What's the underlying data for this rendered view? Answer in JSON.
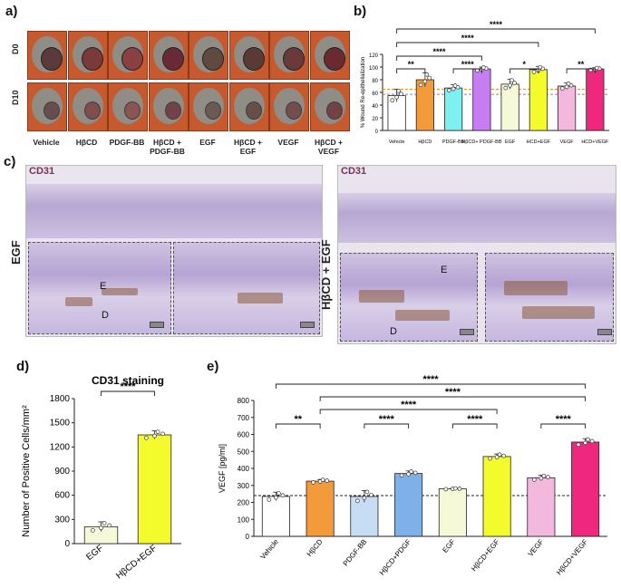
{
  "panels": {
    "a": "a)",
    "b": "b)",
    "c": "c)",
    "d": "d)",
    "e": "e)"
  },
  "panel_a": {
    "row_labels": [
      "D0",
      "D10"
    ],
    "column_labels": [
      "Vehicle",
      "HβCD",
      "PDGF-BB",
      "HβCD + PDGF-BB",
      "EGF",
      "HβCD + EGF",
      "VEGF",
      "HβCD + VEGF"
    ]
  },
  "panel_c": {
    "stain_label_left": "CD31",
    "stain_label_right": "CD31",
    "side_label_left": "EGF",
    "side_label_right": "HβCD + EGF",
    "epidermis": "E",
    "dermis": "D"
  },
  "colors": {
    "vehicle": "#ffffff",
    "hbcd": "#f39a3a",
    "pdgf": "#7ff0f0",
    "hbcd_pdgf": "#c77df2",
    "egf": "#f6f9d8",
    "hbcd_egf": "#f4fb2c",
    "vegf": "#f2b8dd",
    "hbcd_vegf": "#f0287d",
    "pdgf_e": "#c6ddf4",
    "hbcd_pdgf_e": "#7fb0e8"
  },
  "chart_data": [
    {
      "id": "b",
      "type": "bar",
      "ylabel": "% Wound Re-epithelialization",
      "ylim": [
        0,
        120
      ],
      "yticks": [
        0,
        20,
        40,
        60,
        80,
        100,
        120
      ],
      "categories": [
        "Vehicle",
        "HβCD",
        "PDGF-BB",
        "HβCD+ PDGF-BB",
        "EGF",
        "HCD+EGF",
        "VEGF",
        "HCD+VEGF"
      ],
      "values": [
        55,
        80,
        67,
        97,
        73,
        96,
        70,
        97
      ],
      "errors": [
        10,
        11,
        5,
        3,
        8,
        5,
        5,
        2
      ],
      "reference_lines": [
        65,
        57
      ],
      "significance": [
        {
          "from": 0,
          "to": 1,
          "label": "**"
        },
        {
          "from": 2,
          "to": 3,
          "label": "****"
        },
        {
          "from": 4,
          "to": 5,
          "label": "*"
        },
        {
          "from": 6,
          "to": 7,
          "label": "**"
        },
        {
          "from": 0,
          "to": 3,
          "label": "****"
        },
        {
          "from": 0,
          "to": 5,
          "label": "****"
        },
        {
          "from": 0,
          "to": 7,
          "label": "****"
        }
      ]
    },
    {
      "id": "d",
      "type": "bar",
      "title": "CD31 staining",
      "ylabel": "Number of Positive Cells/mm²",
      "ylim": [
        0,
        1800
      ],
      "yticks": [
        0,
        300,
        600,
        900,
        1200,
        1500,
        1800
      ],
      "categories": [
        "EGF",
        "HβCD+EGF"
      ],
      "values": [
        210,
        1350
      ],
      "errors": [
        60,
        50
      ],
      "significance": [
        {
          "from": 0,
          "to": 1,
          "label": "****"
        }
      ]
    },
    {
      "id": "e",
      "type": "bar",
      "ylabel": "VEGF [pg/ml]",
      "ylim": [
        0,
        800
      ],
      "yticks": [
        0,
        100,
        200,
        300,
        400,
        500,
        600,
        700,
        800
      ],
      "categories": [
        "Vehicle",
        "HβCD",
        "PDGF-BB",
        "HβCD+PDGF",
        "EGF",
        "HβCD+EGF",
        "VEGF",
        "HβCD+VEGF"
      ],
      "values": [
        235,
        325,
        235,
        370,
        280,
        470,
        345,
        555
      ],
      "errors": [
        25,
        10,
        35,
        15,
        3,
        15,
        15,
        20
      ],
      "reference_lines": [
        240
      ],
      "significance": [
        {
          "from": 0,
          "to": 1,
          "label": "**"
        },
        {
          "from": 2,
          "to": 3,
          "label": "****"
        },
        {
          "from": 4,
          "to": 5,
          "label": "****"
        },
        {
          "from": 6,
          "to": 7,
          "label": "****"
        },
        {
          "from": 1,
          "to": 5,
          "label": "****"
        },
        {
          "from": 1,
          "to": 7,
          "label": "****"
        },
        {
          "from": 0,
          "to": 7,
          "label": "****"
        }
      ]
    }
  ]
}
